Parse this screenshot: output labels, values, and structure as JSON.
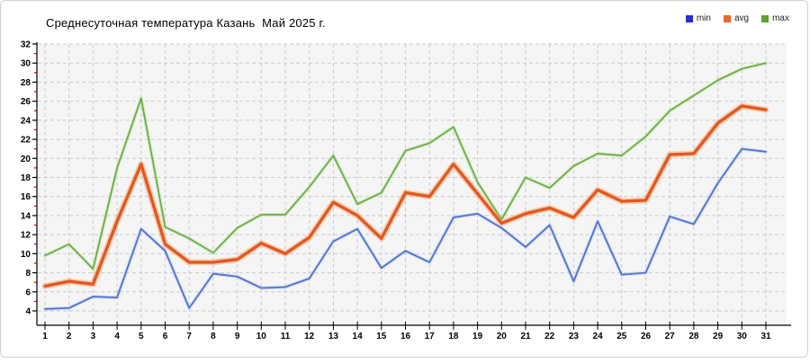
{
  "header": {
    "title": "Среднесуточная температура Казань  Май 2025 г."
  },
  "legend": {
    "items": [
      {
        "label": "min",
        "color": "#2b2bd0"
      },
      {
        "label": "avg",
        "color": "#e8692f"
      },
      {
        "label": "max",
        "color": "#57a52c"
      }
    ]
  },
  "chart_data": {
    "type": "line",
    "title": "Среднесуточная температура Казань  Май 2025 г.",
    "xlabel": "",
    "ylabel": "",
    "x": [
      1,
      2,
      3,
      4,
      5,
      6,
      7,
      8,
      9,
      10,
      11,
      12,
      13,
      14,
      15,
      16,
      17,
      18,
      19,
      20,
      21,
      22,
      23,
      24,
      25,
      26,
      27,
      28,
      29,
      30,
      31
    ],
    "series": [
      {
        "name": "min",
        "color": "#4a6fd1",
        "values": [
          4.2,
          4.3,
          5.5,
          5.4,
          12.6,
          10.3,
          4.3,
          7.9,
          7.6,
          6.4,
          6.5,
          7.4,
          11.3,
          12.6,
          8.5,
          10.3,
          9.1,
          13.8,
          14.2,
          12.7,
          10.7,
          13.0,
          7.1,
          13.4,
          7.8,
          8.0,
          13.9,
          13.1,
          17.4,
          21.0,
          20.7
        ]
      },
      {
        "name": "avg",
        "color": "#e4581d",
        "values": [
          6.6,
          7.1,
          6.8,
          13.4,
          19.4,
          11.0,
          9.1,
          9.1,
          9.4,
          11.1,
          10.0,
          11.7,
          15.4,
          14.0,
          11.6,
          16.4,
          16.0,
          19.4,
          16.3,
          13.2,
          14.2,
          14.8,
          13.8,
          16.7,
          15.5,
          15.6,
          20.4,
          20.5,
          23.7,
          25.5,
          25.1
        ]
      },
      {
        "name": "max",
        "color": "#67ae3e",
        "values": [
          9.8,
          11.0,
          8.4,
          19.0,
          26.3,
          12.8,
          11.6,
          10.1,
          12.7,
          14.1,
          14.1,
          17.0,
          20.3,
          15.2,
          16.4,
          20.8,
          21.6,
          23.3,
          17.5,
          13.6,
          18.0,
          16.9,
          19.2,
          20.5,
          20.3,
          22.3,
          25.0,
          26.6,
          28.2,
          29.4,
          30.0
        ]
      }
    ],
    "ylim": [
      4,
      32
    ],
    "ytick_step": 2,
    "grid": true,
    "legend_position": "top-right",
    "colors": {
      "plot_background": "#f5f5f5",
      "gridline": "#cccccc",
      "axis": "#000000",
      "minor_tick": "#c00000"
    }
  }
}
